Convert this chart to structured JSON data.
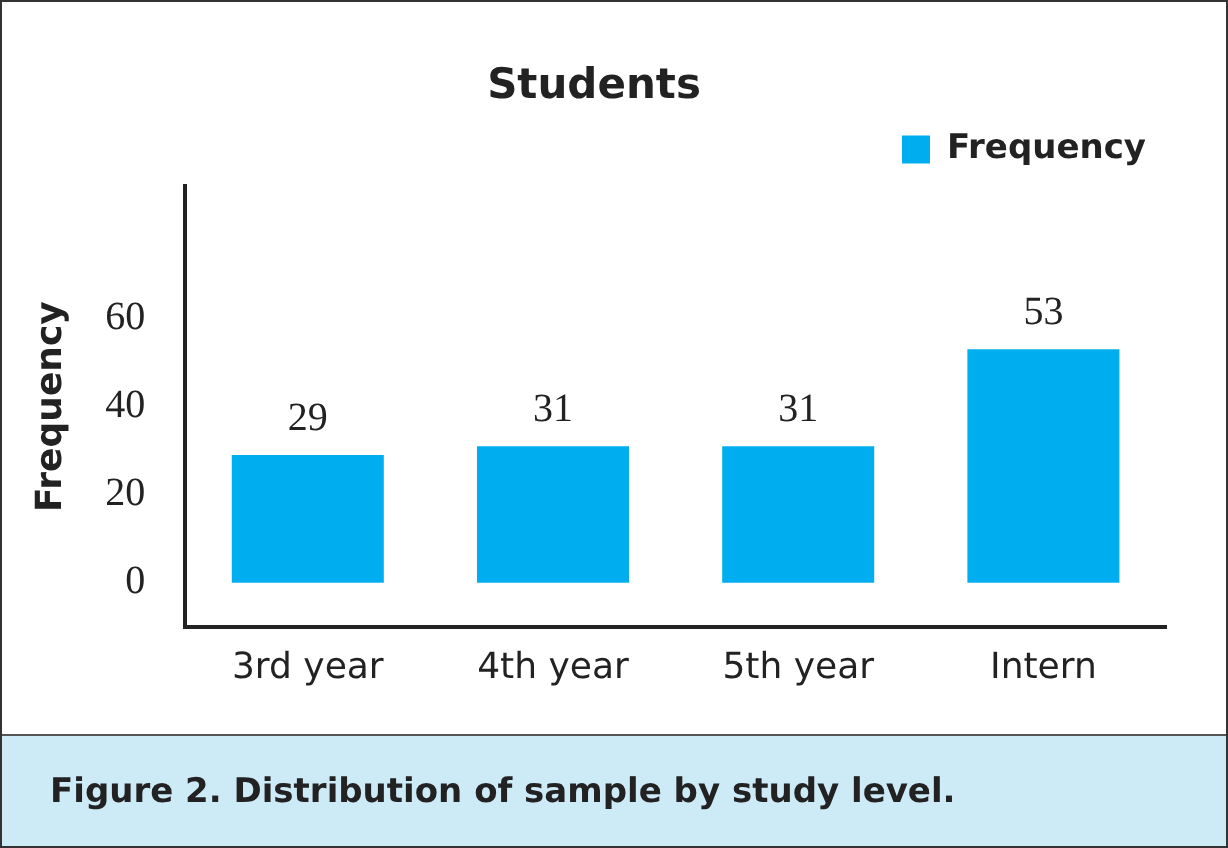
{
  "chart_data": {
    "type": "bar",
    "title": "Students",
    "ylabel": "Frequency",
    "categories": [
      "3rd year",
      "4th year",
      "5th year",
      "Intern"
    ],
    "series": [
      {
        "name": "Frequency",
        "color": "#00aeef",
        "values": [
          29,
          31,
          31,
          53
        ]
      }
    ],
    "ylim": [
      -10,
      90
    ],
    "yticks": [
      0,
      20,
      40,
      60
    ],
    "data_labels": true,
    "grid": false,
    "legend": "top right",
    "annotations": [
      "Figure 2. Distribution of sample by study level."
    ]
  }
}
